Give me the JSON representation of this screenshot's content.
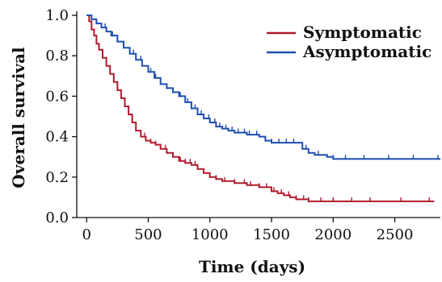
{
  "chart_data": {
    "type": "line",
    "title": "",
    "xlabel": "Time (days)",
    "ylabel": "Overall survival",
    "xlim": [
      -80,
      2870
    ],
    "ylim": [
      0,
      1.02
    ],
    "xticks": [
      0,
      500,
      1000,
      1500,
      2000,
      2500
    ],
    "yticks": [
      0.0,
      0.2,
      0.4,
      0.6,
      0.8,
      1.0
    ],
    "xtick_labels": [
      "0",
      "500",
      "1000",
      "1500",
      "2000",
      "2500"
    ],
    "ytick_labels": [
      "0.0",
      "0.2",
      "0.4",
      "0.6",
      "0.8",
      "1.0"
    ],
    "legend_position": "top-right",
    "grid": false,
    "series": [
      {
        "name": "Symptomatic",
        "color": "#b01c2e",
        "step_points": [
          [
            0,
            1.0
          ],
          [
            20,
            0.97
          ],
          [
            40,
            0.93
          ],
          [
            60,
            0.9
          ],
          [
            80,
            0.86
          ],
          [
            100,
            0.83
          ],
          [
            130,
            0.79
          ],
          [
            160,
            0.75
          ],
          [
            190,
            0.71
          ],
          [
            220,
            0.67
          ],
          [
            250,
            0.63
          ],
          [
            280,
            0.59
          ],
          [
            310,
            0.55
          ],
          [
            340,
            0.51
          ],
          [
            370,
            0.47
          ],
          [
            400,
            0.43
          ],
          [
            440,
            0.4
          ],
          [
            480,
            0.38
          ],
          [
            520,
            0.37
          ],
          [
            560,
            0.36
          ],
          [
            600,
            0.34
          ],
          [
            650,
            0.32
          ],
          [
            700,
            0.3
          ],
          [
            750,
            0.28
          ],
          [
            800,
            0.27
          ],
          [
            850,
            0.26
          ],
          [
            900,
            0.24
          ],
          [
            950,
            0.22
          ],
          [
            1000,
            0.2
          ],
          [
            1050,
            0.19
          ],
          [
            1100,
            0.18
          ],
          [
            1200,
            0.17
          ],
          [
            1300,
            0.16
          ],
          [
            1400,
            0.15
          ],
          [
            1500,
            0.13
          ],
          [
            1550,
            0.12
          ],
          [
            1600,
            0.11
          ],
          [
            1650,
            0.1
          ],
          [
            1700,
            0.09
          ],
          [
            1800,
            0.08
          ],
          [
            2820,
            0.08
          ]
        ],
        "censor_x": [
          470,
          520,
          560,
          600,
          640,
          700,
          760,
          800,
          840,
          880,
          950,
          1000,
          1050,
          1120,
          1200,
          1280,
          1330,
          1400,
          1460,
          1520,
          1580,
          1640,
          1700,
          1760,
          1800,
          1900,
          2000,
          2150,
          2300,
          2550,
          2780
        ]
      },
      {
        "name": "Asymptomatic",
        "color": "#1f4fb0",
        "step_points": [
          [
            0,
            1.0
          ],
          [
            40,
            0.98
          ],
          [
            80,
            0.96
          ],
          [
            120,
            0.94
          ],
          [
            160,
            0.92
          ],
          [
            200,
            0.9
          ],
          [
            250,
            0.87
          ],
          [
            300,
            0.84
          ],
          [
            350,
            0.81
          ],
          [
            400,
            0.78
          ],
          [
            450,
            0.75
          ],
          [
            500,
            0.72
          ],
          [
            550,
            0.69
          ],
          [
            600,
            0.66
          ],
          [
            650,
            0.64
          ],
          [
            700,
            0.62
          ],
          [
            750,
            0.6
          ],
          [
            800,
            0.57
          ],
          [
            850,
            0.54
          ],
          [
            900,
            0.51
          ],
          [
            950,
            0.49
          ],
          [
            1000,
            0.47
          ],
          [
            1050,
            0.45
          ],
          [
            1100,
            0.44
          ],
          [
            1150,
            0.43
          ],
          [
            1200,
            0.42
          ],
          [
            1300,
            0.41
          ],
          [
            1400,
            0.4
          ],
          [
            1450,
            0.38
          ],
          [
            1500,
            0.37
          ],
          [
            1700,
            0.37
          ],
          [
            1750,
            0.34
          ],
          [
            1800,
            0.32
          ],
          [
            1850,
            0.31
          ],
          [
            1950,
            0.3
          ],
          [
            2000,
            0.29
          ],
          [
            2870,
            0.29
          ]
        ],
        "censor_x": [
          150,
          210,
          300,
          380,
          440,
          520,
          560,
          600,
          650,
          700,
          760,
          820,
          880,
          930,
          990,
          1040,
          1080,
          1130,
          1180,
          1230,
          1280,
          1320,
          1380,
          1450,
          1500,
          1560,
          1620,
          1680,
          1780,
          1880,
          2000,
          2100,
          2250,
          2450,
          2650,
          2850
        ]
      }
    ]
  }
}
